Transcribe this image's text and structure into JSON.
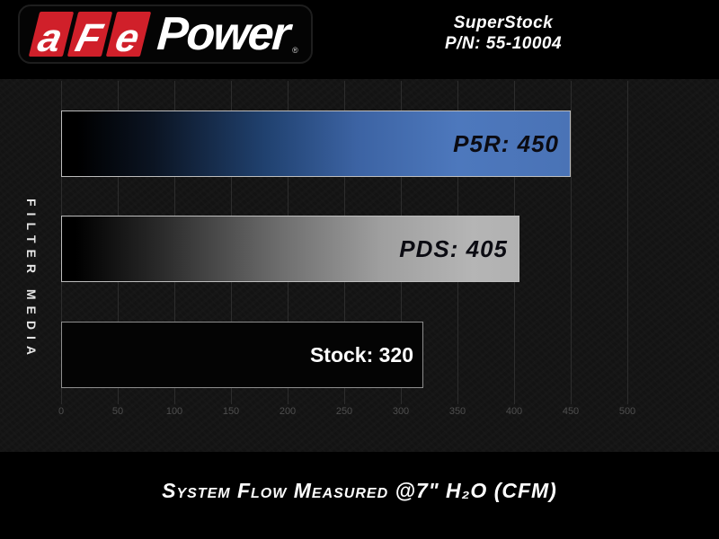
{
  "header": {
    "logo": {
      "chips": [
        "a",
        "F",
        "e"
      ],
      "power": "Power",
      "registered_mark": "®"
    },
    "product_line1": "SuperStock",
    "product_line2": "P/N: 55-10004"
  },
  "chart_data": {
    "type": "bar",
    "orientation": "horizontal",
    "categories": [
      "P5R",
      "PDS",
      "Stock"
    ],
    "values": [
      450,
      405,
      320
    ],
    "bar_labels": [
      "P5R: 450",
      "PDS: 405",
      "Stock: 320"
    ],
    "xlim": [
      0,
      500
    ],
    "xticks": [
      0,
      50,
      100,
      150,
      200,
      250,
      300,
      350,
      400,
      450,
      500
    ],
    "grid": true,
    "legend": "none",
    "ylabel": "FILTER MEDIA",
    "xlabel": "System Flow Measured @7\" H₂O (CFM)",
    "colors": {
      "logo_red": "#d0202a",
      "bar_blue": "#4a74b8",
      "bar_gray": "#b3b3b3",
      "bar_black": "#060606",
      "background": "#131313",
      "gridline": "#2d2d2d",
      "tick_text": "#4e4e4e"
    }
  }
}
